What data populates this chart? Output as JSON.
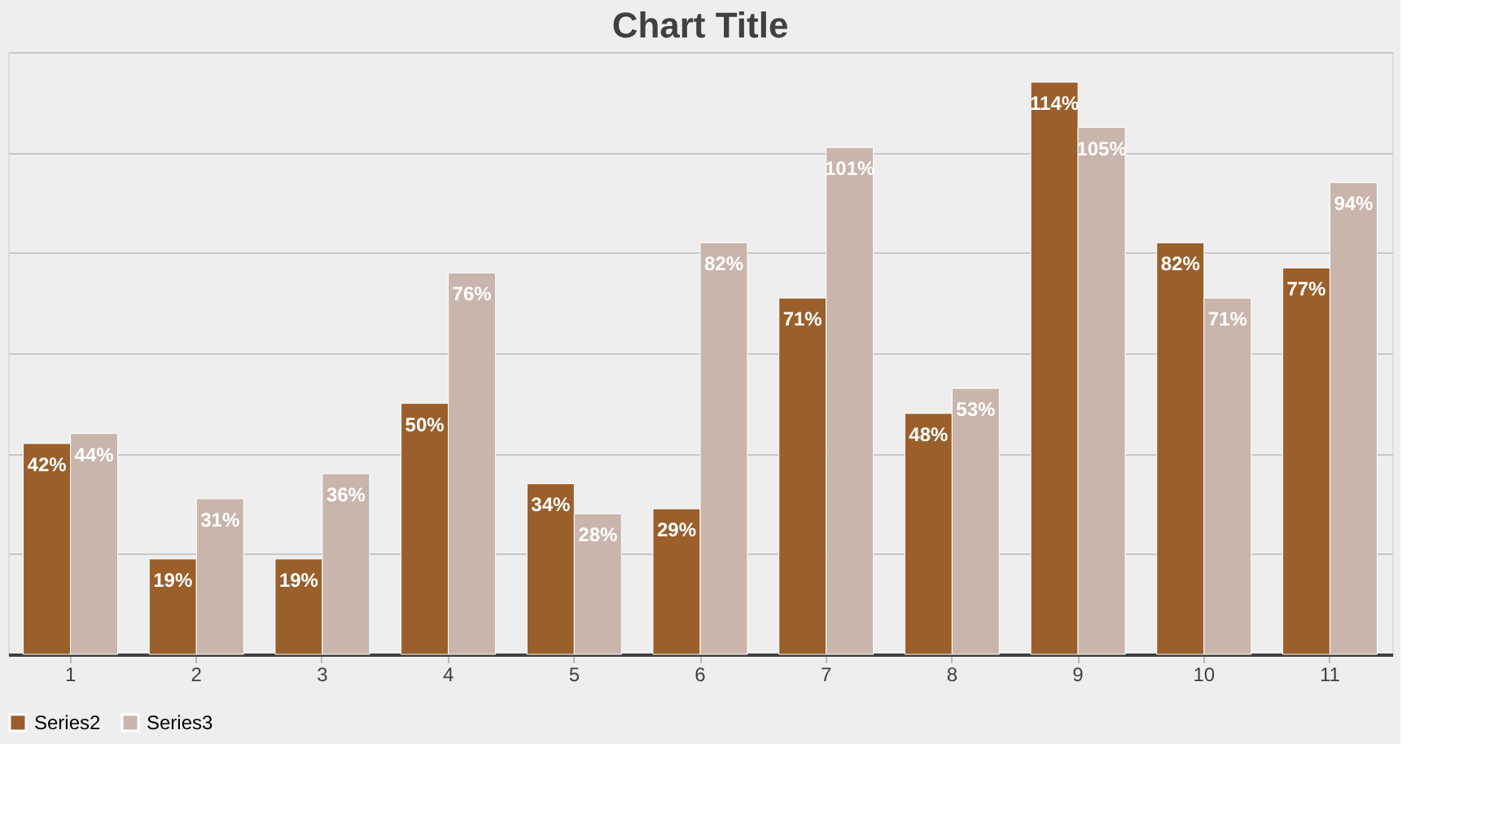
{
  "chart_data": {
    "type": "bar",
    "title": "Chart Title",
    "categories": [
      "1",
      "2",
      "3",
      "4",
      "5",
      "6",
      "7",
      "8",
      "9",
      "10",
      "11"
    ],
    "series": [
      {
        "name": "Series2",
        "color": "#9a5f2b",
        "values": [
          42,
          19,
          19,
          50,
          34,
          29,
          71,
          48,
          114,
          82,
          77
        ],
        "value_labels": [
          "42%",
          "19%",
          "19%",
          "50%",
          "34%",
          "29%",
          "71%",
          "48%",
          "114%",
          "82%",
          "77%"
        ]
      },
      {
        "name": "Series3",
        "color": "#c9b5ab",
        "values": [
          44,
          31,
          36,
          76,
          28,
          82,
          101,
          53,
          105,
          71,
          94
        ],
        "value_labels": [
          "44%",
          "31%",
          "36%",
          "76%",
          "28%",
          "82%",
          "101%",
          "53%",
          "105%",
          "71%",
          "94%"
        ]
      }
    ],
    "ylim": [
      0,
      120
    ],
    "yticks": [
      {
        "value": 0,
        "label": null
      },
      {
        "value": 20,
        "label": null
      },
      {
        "value": 40,
        "label": null
      },
      {
        "value": 60,
        "label": null
      },
      {
        "value": 80,
        "label": null
      },
      {
        "value": 100,
        "label": null
      },
      {
        "value": 120,
        "label": null
      }
    ],
    "tick_labels": "x",
    "grid": "y",
    "legend": "bottom"
  }
}
